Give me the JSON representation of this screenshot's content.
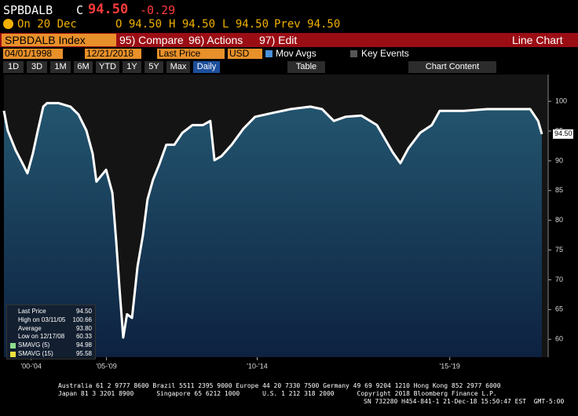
{
  "header": {
    "ticker": "SPBDALB",
    "flag": "C",
    "price": "94.50",
    "change": "-0.29",
    "date": "On 20 Dec",
    "open": "O 94.50",
    "high": "H 94.50",
    "low": "L 94.50",
    "prev": "Prev 94.50"
  },
  "toolbar": {
    "security": "SPBDALB Index",
    "compare": "95) Compare",
    "actions": "96) Actions",
    "edit": "97) Edit",
    "view": "Line Chart"
  },
  "controls": {
    "start": "04/01/1998",
    "end": "12/21/2018",
    "field": "Last Price",
    "currency": "USD",
    "mov_avgs": "Mov Avgs",
    "key_events": "Key Events"
  },
  "ranges": [
    "1D",
    "3D",
    "1M",
    "6M",
    "YTD",
    "1Y",
    "5Y",
    "Max"
  ],
  "frequency": "Daily",
  "table": "Table",
  "chart_content": "Chart Content",
  "legend": [
    {
      "label": "Last Price",
      "value": "94.50"
    },
    {
      "label": "High on 03/11/05",
      "value": "100.66"
    },
    {
      "label": "Average",
      "value": "93.80"
    },
    {
      "label": "Low on 12/17/08",
      "value": "60.33"
    },
    {
      "label": "SMAVG (5)",
      "value": "94.98"
    },
    {
      "label": "SMAVG (15)",
      "value": "95.58"
    }
  ],
  "price_tag": "94.50",
  "footer": [
    "Australia 61 2 9777 8600 Brazil 5511 2395 9000 Europe 44 20 7330 7500 Germany 49 69 9204 1210 Hong Kong 852 2977 6000",
    "Japan 81 3 3201 8900      Singapore 65 6212 1000      U.S. 1 212 318 2000      Copyright 2018 Bloomberg Finance L.P.",
    "SN 732280 H454-841-1 21-Dec-18 15:50:47 EST  GMT-5:00"
  ],
  "chart_data": {
    "type": "line",
    "color": "#ffffff",
    "x": [
      2006.05,
      2006.14,
      2006.33,
      2006.52,
      2006.61,
      2006.74,
      2006.86,
      2006.99,
      2007.08,
      2007.36,
      2007.64,
      2007.83,
      2008.02,
      2008.17,
      2008.26,
      2008.49,
      2008.64,
      2008.73,
      2008.81,
      2008.9,
      2008.99,
      2009.11,
      2009.24,
      2009.37,
      2009.48,
      2009.61,
      2009.76,
      2009.93,
      2010.12,
      2010.31,
      2010.55,
      2010.8,
      2010.98,
      2011.08,
      2011.25,
      2011.49,
      2011.77,
      2012.05,
      2012.43,
      2012.9,
      2013.37,
      2013.65,
      2013.93,
      2014.21,
      2014.59,
      2014.96,
      2015.34,
      2015.52,
      2015.71,
      2015.99,
      2016.27,
      2016.46,
      2017.03,
      2017.59,
      2018.15,
      2018.62,
      2018.81,
      2018.9
    ],
    "values": [
      98.4,
      95.1,
      91.8,
      89.2,
      87.9,
      91.2,
      95.1,
      99.1,
      99.7,
      99.7,
      99.1,
      97.8,
      95.1,
      91.2,
      86.5,
      88.5,
      84.6,
      76.6,
      68.7,
      60.3,
      64.2,
      63.6,
      72.2,
      77.5,
      83.5,
      86.8,
      89.4,
      92.7,
      92.7,
      94.7,
      96.0,
      96.0,
      96.7,
      90.1,
      90.8,
      92.7,
      95.4,
      97.4,
      98.0,
      98.7,
      99.1,
      98.7,
      96.7,
      97.4,
      97.6,
      96.0,
      91.4,
      89.6,
      92.1,
      94.7,
      96.0,
      98.4,
      98.4,
      98.7,
      98.7,
      98.7,
      96.7,
      94.5
    ],
    "xlim": [
      2006.05,
      2019.05
    ],
    "xticks": [
      {
        "value": 2006.7,
        "label": "'00-'04"
      },
      {
        "value": 2008.5,
        "label": "'05-'09"
      },
      {
        "value": 2012.1,
        "label": "'10-'14"
      },
      {
        "value": 2016.7,
        "label": "'15-'19"
      }
    ],
    "ylim": [
      57,
      104.5
    ],
    "yticks": [
      60,
      65,
      70,
      75,
      80,
      85,
      90,
      95,
      100
    ]
  }
}
